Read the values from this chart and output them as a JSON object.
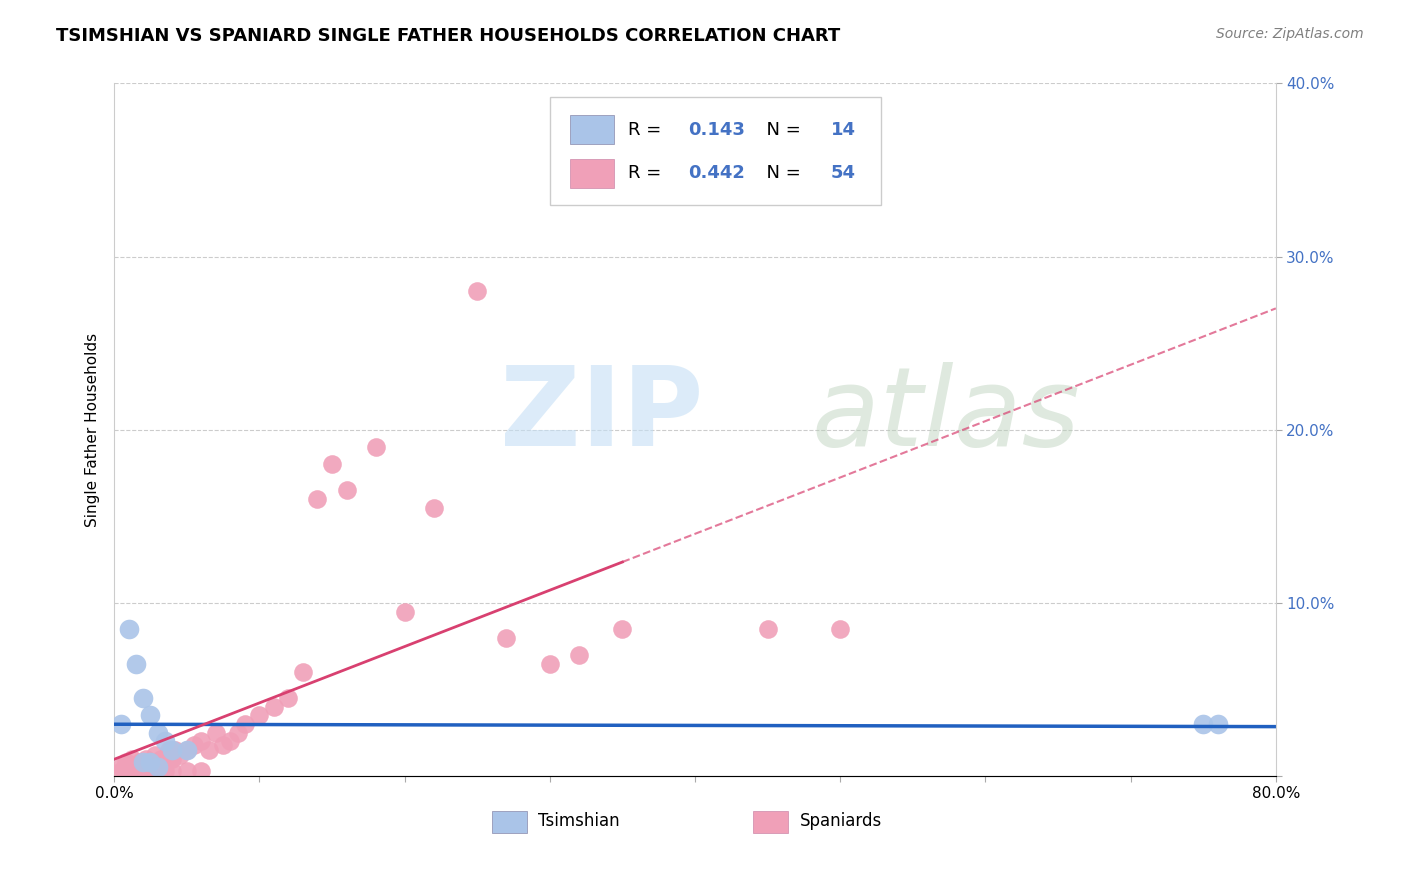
{
  "title": "TSIMSHIAN VS SPANIARD SINGLE FATHER HOUSEHOLDS CORRELATION CHART",
  "source": "Source: ZipAtlas.com",
  "ylabel": "Single Father Households",
  "xlim": [
    0.0,
    0.8
  ],
  "ylim": [
    0.0,
    0.4
  ],
  "xticks": [
    0.0,
    0.1,
    0.2,
    0.3,
    0.4,
    0.5,
    0.6,
    0.7,
    0.8
  ],
  "yticks": [
    0.0,
    0.1,
    0.2,
    0.3,
    0.4
  ],
  "xtick_labels": [
    "0.0%",
    "",
    "",
    "",
    "",
    "",
    "",
    "",
    "80.0%"
  ],
  "ytick_labels": [
    "",
    "10.0%",
    "20.0%",
    "30.0%",
    "40.0%"
  ],
  "tsimshian_color": "#aac4e8",
  "spaniard_color": "#f0a0b8",
  "tsimshian_line_color": "#2060c0",
  "spaniard_line_color": "#d84070",
  "tsimshian_R": 0.143,
  "tsimshian_N": 14,
  "spaniard_R": 0.442,
  "spaniard_N": 54,
  "background_color": "#ffffff",
  "tsimshian_x": [
    0.005,
    0.01,
    0.015,
    0.02,
    0.025,
    0.03,
    0.035,
    0.04,
    0.05,
    0.75,
    0.76,
    0.02,
    0.025,
    0.03
  ],
  "tsimshian_y": [
    0.03,
    0.085,
    0.065,
    0.045,
    0.035,
    0.025,
    0.02,
    0.015,
    0.015,
    0.03,
    0.03,
    0.008,
    0.008,
    0.005
  ],
  "spaniard_x": [
    0.005,
    0.008,
    0.01,
    0.012,
    0.015,
    0.018,
    0.02,
    0.022,
    0.025,
    0.028,
    0.03,
    0.032,
    0.035,
    0.038,
    0.04,
    0.042,
    0.045,
    0.05,
    0.055,
    0.06,
    0.065,
    0.07,
    0.075,
    0.08,
    0.085,
    0.09,
    0.1,
    0.11,
    0.12,
    0.13,
    0.14,
    0.15,
    0.16,
    0.18,
    0.2,
    0.22,
    0.25,
    0.27,
    0.3,
    0.32,
    0.35,
    0.005,
    0.008,
    0.01,
    0.015,
    0.02,
    0.025,
    0.03,
    0.035,
    0.04,
    0.05,
    0.06,
    0.45,
    0.5
  ],
  "spaniard_y": [
    0.005,
    0.008,
    0.006,
    0.01,
    0.005,
    0.008,
    0.006,
    0.01,
    0.008,
    0.012,
    0.006,
    0.01,
    0.008,
    0.015,
    0.01,
    0.015,
    0.012,
    0.015,
    0.018,
    0.02,
    0.015,
    0.025,
    0.018,
    0.02,
    0.025,
    0.03,
    0.035,
    0.04,
    0.045,
    0.06,
    0.16,
    0.18,
    0.165,
    0.19,
    0.095,
    0.155,
    0.28,
    0.08,
    0.065,
    0.07,
    0.085,
    0.003,
    0.005,
    0.003,
    0.003,
    0.003,
    0.003,
    0.003,
    0.003,
    0.003,
    0.003,
    0.003,
    0.085,
    0.085
  ],
  "grid_color": "#cccccc",
  "title_fontsize": 13,
  "tick_fontsize": 11,
  "legend_fontsize": 13,
  "tick_color": "#4472c4"
}
